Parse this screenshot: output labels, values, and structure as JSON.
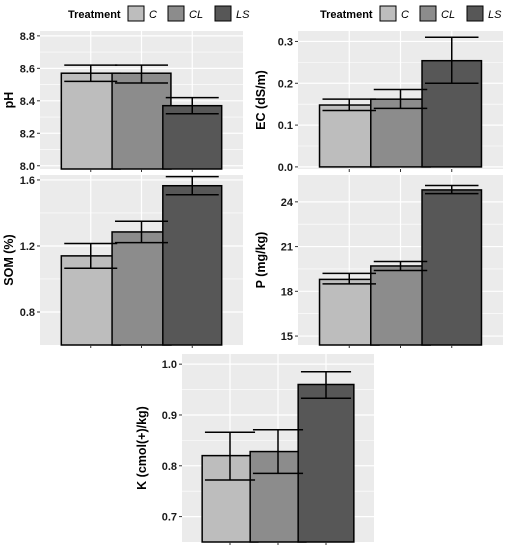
{
  "chart_data": [
    {
      "type": "bar",
      "categories": [
        "C",
        "CL",
        "LS"
      ],
      "legend_title": "Treatment",
      "legend_placement": "top",
      "ylabel": "pH",
      "ylim": [
        7.98,
        8.83
      ],
      "yticks": [
        "8.0",
        "8.2",
        "8.4",
        "8.6",
        "8.8"
      ],
      "values": [
        8.57,
        8.57,
        8.37
      ],
      "err_low": [
        8.52,
        8.51,
        8.32
      ],
      "err_high": [
        8.62,
        8.62,
        8.42
      ],
      "colors": [
        "#bdbdbd",
        "#8c8c8c",
        "#575757"
      ],
      "grid": true
    },
    {
      "type": "bar",
      "categories": [
        "C",
        "CL",
        "LS"
      ],
      "legend_title": "Treatment",
      "legend_placement": "top",
      "ylabel": "EC (dS/m)",
      "ylim": [
        -0.005,
        0.325
      ],
      "yticks": [
        "0.0",
        "0.1",
        "0.2",
        "0.3"
      ],
      "values": [
        0.148,
        0.162,
        0.254
      ],
      "err_low": [
        0.135,
        0.14,
        0.2
      ],
      "err_high": [
        0.162,
        0.185,
        0.31
      ],
      "colors": [
        "#bdbdbd",
        "#8c8c8c",
        "#575757"
      ],
      "grid": true
    },
    {
      "type": "bar",
      "categories": [
        "C",
        "CL",
        "LS"
      ],
      "ylabel": "SOM (%)",
      "ylim": [
        0.6,
        1.63
      ],
      "yticks": [
        "0.8",
        "1.2",
        "1.6"
      ],
      "values": [
        1.14,
        1.285,
        1.565
      ],
      "err_low": [
        1.065,
        1.22,
        1.51
      ],
      "err_high": [
        1.215,
        1.35,
        1.62
      ],
      "colors": [
        "#bdbdbd",
        "#8c8c8c",
        "#575757"
      ],
      "grid": true
    },
    {
      "type": "bar",
      "categories": [
        "C",
        "CL",
        "LS"
      ],
      "ylabel": "P (mg/kg)",
      "ylim": [
        14.4,
        25.8
      ],
      "yticks": [
        "15",
        "18",
        "21",
        "24"
      ],
      "values": [
        18.8,
        19.7,
        24.8
      ],
      "err_low": [
        18.5,
        19.4,
        24.55
      ],
      "err_high": [
        19.2,
        20.0,
        25.1
      ],
      "colors": [
        "#bdbdbd",
        "#8c8c8c",
        "#575757"
      ],
      "grid": true
    },
    {
      "type": "bar",
      "categories": [
        "C",
        "CL",
        "LS"
      ],
      "ylabel": "K (cmol(+)/kg)",
      "ylim": [
        0.65,
        1.02
      ],
      "yticks": [
        "0.7",
        "0.8",
        "0.9",
        "1.0"
      ],
      "values": [
        0.82,
        0.828,
        0.96
      ],
      "err_low": [
        0.772,
        0.785,
        0.933
      ],
      "err_high": [
        0.866,
        0.871,
        0.985
      ],
      "colors": [
        "#bdbdbd",
        "#8c8c8c",
        "#575757"
      ],
      "grid": true
    }
  ]
}
